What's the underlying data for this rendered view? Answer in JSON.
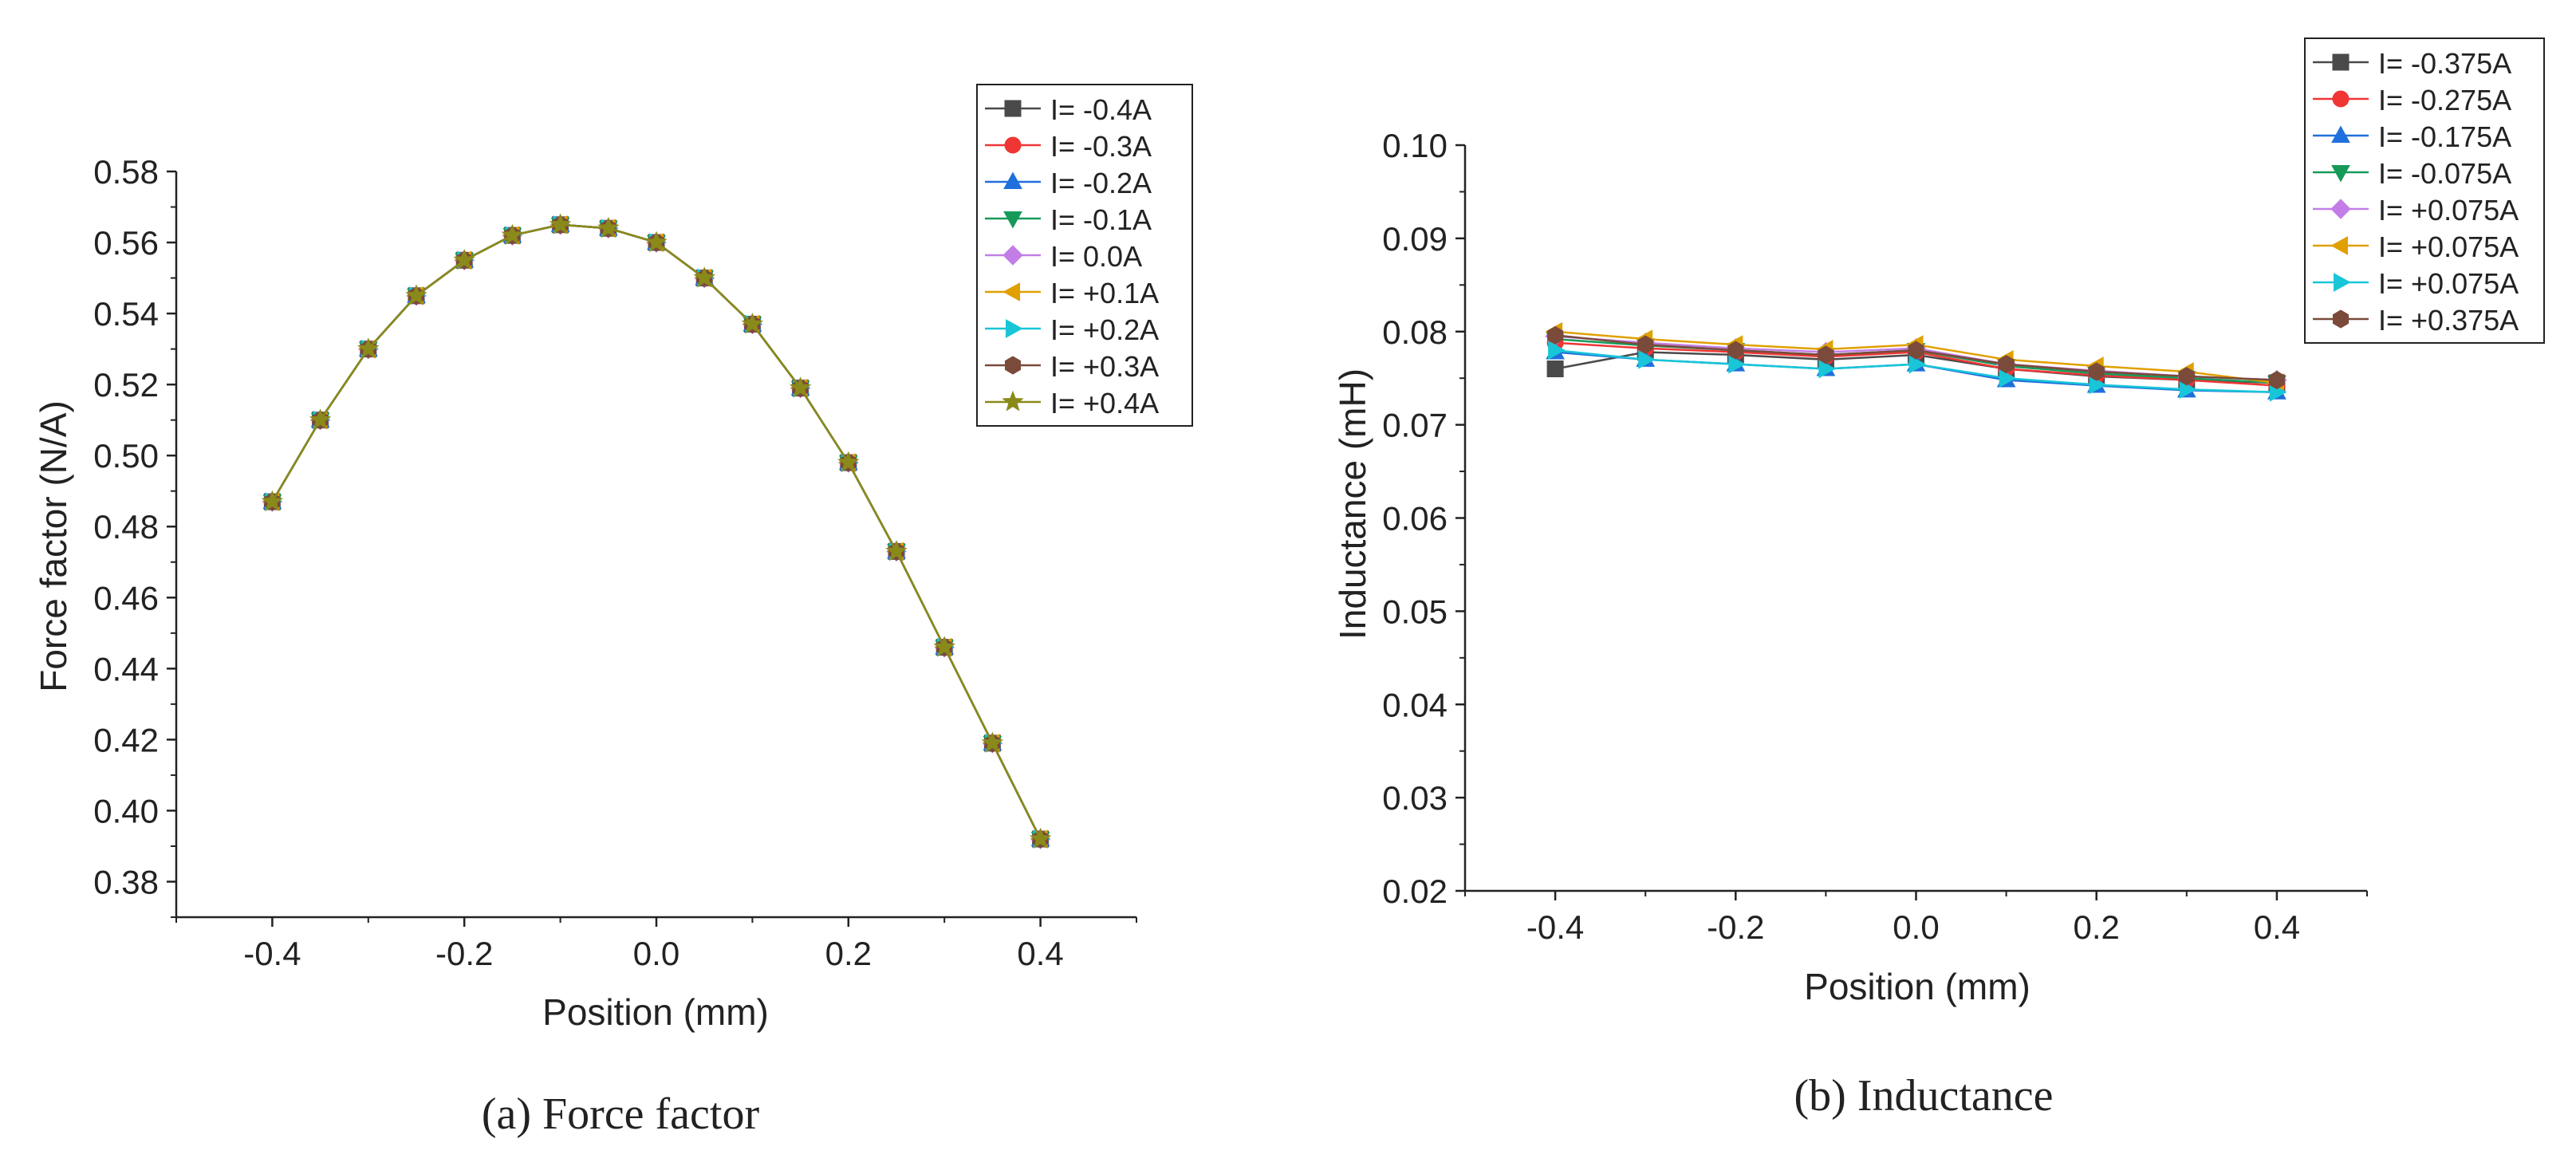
{
  "colors": {
    "markers": [
      "#4a4a4a",
      "#f03535",
      "#1f6fdc",
      "#169a5a",
      "#c27ee6",
      "#e0a000",
      "#18c6d8",
      "#7a4a3a",
      "#8a8a1a"
    ],
    "axis": "#222222",
    "background": "#ffffff"
  },
  "chart_data": [
    {
      "type": "line",
      "caption": "(a) Force factor",
      "xlabel": "Position (mm)",
      "ylabel": "Force factor (N/A)",
      "xlim": [
        -0.5,
        0.5
      ],
      "ylim": [
        0.37,
        0.58
      ],
      "xticks": [
        "-0.4",
        "-0.2",
        "0.0",
        "0.2",
        "0.4"
      ],
      "yticks": [
        "0.38",
        "0.40",
        "0.42",
        "0.44",
        "0.46",
        "0.48",
        "0.50",
        "0.52",
        "0.54",
        "0.56",
        "0.58"
      ],
      "legend_position": "top-right",
      "x": [
        -0.4,
        -0.35,
        -0.3,
        -0.25,
        -0.2,
        -0.15,
        -0.1,
        -0.05,
        0.0,
        0.05,
        0.1,
        0.15,
        0.2,
        0.25,
        0.3,
        0.35,
        0.4
      ],
      "series": [
        {
          "name": "I= -0.4A",
          "marker": "square",
          "values": [
            0.487,
            0.51,
            0.53,
            0.545,
            0.555,
            0.562,
            0.565,
            0.564,
            0.56,
            0.55,
            0.537,
            0.519,
            0.498,
            0.473,
            0.446,
            0.419,
            0.392
          ]
        },
        {
          "name": "I= -0.3A",
          "marker": "circle",
          "values": [
            0.487,
            0.51,
            0.53,
            0.545,
            0.555,
            0.562,
            0.565,
            0.564,
            0.56,
            0.55,
            0.537,
            0.519,
            0.498,
            0.473,
            0.446,
            0.419,
            0.392
          ]
        },
        {
          "name": "I= -0.2A",
          "marker": "triangle-up",
          "values": [
            0.487,
            0.51,
            0.53,
            0.545,
            0.555,
            0.562,
            0.565,
            0.564,
            0.56,
            0.55,
            0.537,
            0.519,
            0.498,
            0.473,
            0.446,
            0.419,
            0.392
          ]
        },
        {
          "name": "I= -0.1A",
          "marker": "triangle-down",
          "values": [
            0.487,
            0.51,
            0.53,
            0.545,
            0.555,
            0.562,
            0.565,
            0.564,
            0.56,
            0.55,
            0.537,
            0.519,
            0.498,
            0.473,
            0.446,
            0.419,
            0.392
          ]
        },
        {
          "name": "I= 0.0A",
          "marker": "diamond",
          "values": [
            0.487,
            0.51,
            0.53,
            0.545,
            0.555,
            0.562,
            0.565,
            0.564,
            0.56,
            0.55,
            0.537,
            0.519,
            0.498,
            0.473,
            0.446,
            0.419,
            0.392
          ]
        },
        {
          "name": "I= +0.1A",
          "marker": "triangle-left",
          "values": [
            0.487,
            0.51,
            0.53,
            0.545,
            0.555,
            0.562,
            0.565,
            0.564,
            0.56,
            0.55,
            0.537,
            0.519,
            0.498,
            0.473,
            0.446,
            0.419,
            0.392
          ]
        },
        {
          "name": "I= +0.2A",
          "marker": "triangle-right",
          "values": [
            0.487,
            0.51,
            0.53,
            0.545,
            0.555,
            0.562,
            0.565,
            0.564,
            0.56,
            0.55,
            0.537,
            0.519,
            0.498,
            0.473,
            0.446,
            0.419,
            0.392
          ]
        },
        {
          "name": "I= +0.3A",
          "marker": "hexagon",
          "values": [
            0.487,
            0.51,
            0.53,
            0.545,
            0.555,
            0.562,
            0.565,
            0.564,
            0.56,
            0.55,
            0.537,
            0.519,
            0.498,
            0.473,
            0.446,
            0.419,
            0.392
          ]
        },
        {
          "name": "I= +0.4A",
          "marker": "star",
          "values": [
            0.487,
            0.51,
            0.53,
            0.545,
            0.555,
            0.562,
            0.565,
            0.564,
            0.56,
            0.55,
            0.537,
            0.519,
            0.498,
            0.473,
            0.446,
            0.419,
            0.392
          ]
        }
      ]
    },
    {
      "type": "line",
      "caption": "(b) Inductance",
      "xlabel": "Position (mm)",
      "ylabel": "Inductance (mH)",
      "xlim": [
        -0.5,
        0.5
      ],
      "ylim": [
        0.02,
        0.1
      ],
      "xticks": [
        "-0.4",
        "-0.2",
        "0.0",
        "0.2",
        "0.4"
      ],
      "yticks": [
        "0.02",
        "0.03",
        "0.04",
        "0.05",
        "0.06",
        "0.07",
        "0.08",
        "0.09",
        "0.10"
      ],
      "legend_position": "top-right",
      "x": [
        -0.4,
        -0.3,
        -0.2,
        -0.1,
        0.0,
        0.1,
        0.2,
        0.3,
        0.4
      ],
      "series": [
        {
          "name": "I= -0.375A",
          "marker": "square",
          "values": [
            0.076,
            0.0778,
            0.0775,
            0.077,
            0.0775,
            0.076,
            0.0752,
            0.0748,
            0.0745
          ]
        },
        {
          "name": "I= -0.275A",
          "marker": "circle",
          "values": [
            0.0788,
            0.0782,
            0.0778,
            0.0773,
            0.0778,
            0.076,
            0.0753,
            0.0748,
            0.0742
          ]
        },
        {
          "name": "I= -0.175A",
          "marker": "triangle-up",
          "values": [
            0.0778,
            0.077,
            0.0765,
            0.076,
            0.0765,
            0.0748,
            0.0742,
            0.0737,
            0.0735
          ]
        },
        {
          "name": "I= -0.075A",
          "marker": "triangle-down",
          "values": [
            0.0792,
            0.0785,
            0.078,
            0.0775,
            0.078,
            0.0763,
            0.0755,
            0.075,
            0.0745
          ]
        },
        {
          "name": "I= +0.075A",
          "marker": "diamond",
          "values": [
            0.0795,
            0.0788,
            0.0782,
            0.0778,
            0.0782,
            0.0765,
            0.0758,
            0.0752,
            0.0748
          ]
        },
        {
          "name": "I= +0.075A",
          "marker": "triangle-left",
          "values": [
            0.08,
            0.0792,
            0.0786,
            0.0781,
            0.0786,
            0.077,
            0.0763,
            0.0757,
            0.0745
          ]
        },
        {
          "name": "I= +0.075A",
          "marker": "triangle-right",
          "values": [
            0.078,
            0.077,
            0.0765,
            0.076,
            0.0765,
            0.075,
            0.0743,
            0.0738,
            0.0735
          ]
        },
        {
          "name": "I= +0.375A",
          "marker": "hexagon",
          "values": [
            0.0796,
            0.0786,
            0.078,
            0.0775,
            0.078,
            0.0765,
            0.0757,
            0.0752,
            0.0748
          ]
        }
      ]
    }
  ]
}
